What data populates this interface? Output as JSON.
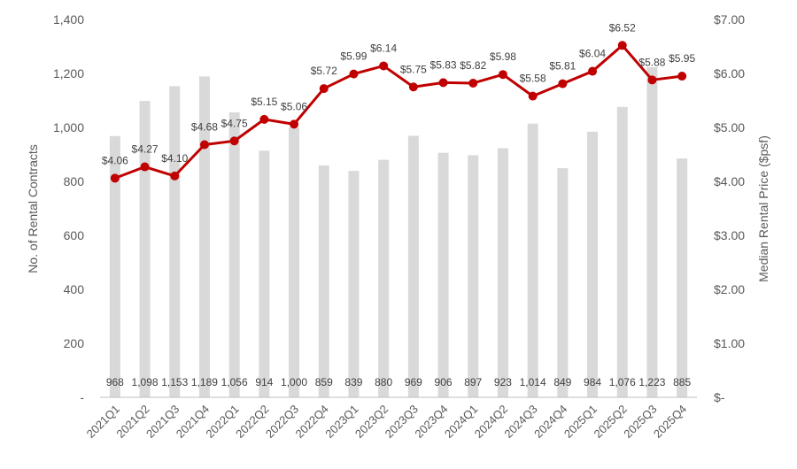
{
  "chart_data": {
    "type": "bar+line",
    "categories": [
      "2021Q1",
      "2021Q2",
      "2021Q3",
      "2021Q4",
      "2022Q1",
      "2022Q2",
      "2022Q3",
      "2022Q4",
      "2023Q1",
      "2023Q2",
      "2023Q3",
      "2023Q4",
      "2024Q1",
      "2024Q2",
      "2024Q3",
      "2024Q4",
      "2025Q1",
      "2025Q2",
      "2025Q3",
      "2025Q4"
    ],
    "bar_series": {
      "values": [
        968,
        1098,
        1153,
        1189,
        1056,
        914,
        1000,
        859,
        839,
        880,
        969,
        906,
        897,
        923,
        1014,
        849,
        984,
        1076,
        1223,
        885
      ],
      "labels": [
        "968",
        "1,098",
        "1,153",
        "1,189",
        "1,056",
        "914",
        "1,000",
        "859",
        "839",
        "880",
        "969",
        "906",
        "897",
        "923",
        "1,014",
        "849",
        "984",
        "1,076",
        "1,223",
        "885"
      ],
      "color": "#d9d9d9"
    },
    "line_series": {
      "values": [
        4.06,
        4.27,
        4.1,
        4.68,
        4.75,
        5.15,
        5.06,
        5.72,
        5.99,
        6.14,
        5.75,
        5.83,
        5.82,
        5.98,
        5.58,
        5.81,
        6.04,
        6.52,
        5.88,
        5.95
      ],
      "labels": [
        "$4.06",
        "$4.27",
        "$4.10",
        "$4.68",
        "$4.75",
        "$5.15",
        "$5.06",
        "$5.72",
        "$5.99",
        "$6.14",
        "$5.75",
        "$5.83",
        "$5.82",
        "$5.98",
        "$5.58",
        "$5.81",
        "$6.04",
        "$6.52",
        "$5.88",
        "$5.95"
      ],
      "color": "#c00000"
    },
    "y_left": {
      "label": "No. of Rental Contracts",
      "ylim": [
        0,
        1400
      ],
      "ticks": [
        0,
        200,
        400,
        600,
        800,
        1000,
        1200,
        1400
      ],
      "tick_labels": [
        "-",
        "200",
        "400",
        "600",
        "800",
        "1,000",
        "1,200",
        "1,400"
      ]
    },
    "y_right": {
      "label": "Median Rental Price ($psf)",
      "ylim": [
        0,
        7
      ],
      "ticks": [
        0,
        1,
        2,
        3,
        4,
        5,
        6,
        7
      ],
      "tick_labels": [
        "$-",
        "$1.00",
        "$2.00",
        "$3.00",
        "$4.00",
        "$5.00",
        "$6.00",
        "$7.00"
      ]
    },
    "grid": false,
    "legend": "none"
  }
}
